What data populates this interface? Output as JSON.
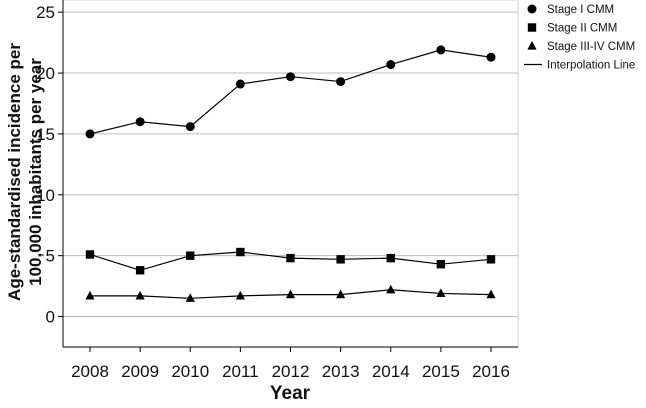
{
  "chart_data": {
    "type": "line",
    "xlabel": "Year",
    "ylabel_lines": [
      "Age-standardised incidence per",
      "100,000 inhabitants per year"
    ],
    "x": [
      2008,
      2009,
      2010,
      2011,
      2012,
      2013,
      2014,
      2015,
      2016
    ],
    "x_tick_labels": [
      "2008",
      "2009",
      "2010",
      "2011",
      "2012",
      "2013",
      "2014",
      "2015",
      "2016"
    ],
    "ylim": [
      -2.5,
      26
    ],
    "y_ticks": [
      0,
      5,
      10,
      15,
      20,
      25
    ],
    "y_tick_labels": [
      "0",
      "5",
      "10",
      "15",
      "20",
      "25"
    ],
    "grid": "horizontal",
    "legend_position": "right",
    "series": [
      {
        "name": "Stage I CMM",
        "marker": "circle",
        "values": [
          15.0,
          16.0,
          15.6,
          19.1,
          19.7,
          19.3,
          20.7,
          21.9,
          21.3
        ]
      },
      {
        "name": "Stage II CMM",
        "marker": "square",
        "values": [
          5.1,
          3.8,
          5.0,
          5.3,
          4.8,
          4.7,
          4.8,
          4.3,
          4.7
        ]
      },
      {
        "name": "Stage III-IV CMM",
        "marker": "triangle",
        "values": [
          1.7,
          1.7,
          1.5,
          1.7,
          1.8,
          1.8,
          2.2,
          1.9,
          1.8
        ]
      }
    ],
    "line_legend_label": "Interpolation Line",
    "colors": {
      "line": "#000000",
      "grid": "#bdbdbd",
      "frame": "#cfcfcf"
    }
  }
}
